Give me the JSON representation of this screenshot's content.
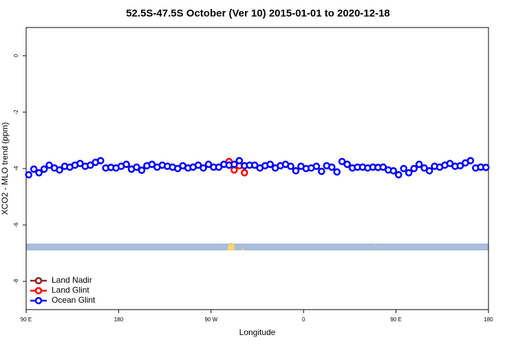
{
  "chart_data": {
    "type": "scatter",
    "title": "52.5S-47.5S October (Ver 10)   2015-01-01 to 2020-12-18",
    "x_label": "Longitude",
    "y_label": "XCO2 - MLO trend (ppm)",
    "xlim": [
      90,
      540
    ],
    "ylim": [
      -9,
      1
    ],
    "xticks": [
      {
        "value": 90,
        "label": "90 E"
      },
      180,
      {
        "value": 270,
        "label": "90 W"
      },
      {
        "value": 360,
        "label": "0"
      },
      {
        "value": 450,
        "label": "90 E"
      },
      {
        "value": 540,
        "label": "180"
      }
    ],
    "yticks": [
      0,
      -2,
      -4,
      -6,
      -8
    ],
    "legend": "bottom-left",
    "series": [
      {
        "name": "Land Nadir",
        "color": "#8b2323",
        "x": [],
        "values": []
      },
      {
        "name": "Land Glint",
        "color": "#ff0000",
        "x": [
          287.5,
          292.5,
          297.5,
          302.5
        ],
        "values": [
          -3.75,
          -4.05,
          -3.9,
          -4.15
        ]
      },
      {
        "name": "Ocean Glint",
        "color": "#0000ff",
        "x": [
          92.5,
          97.5,
          102.5,
          107.5,
          112.5,
          117.5,
          122.5,
          127.5,
          132.5,
          137.5,
          142.5,
          147.5,
          152.5,
          157.5,
          162.5,
          167.5,
          172.5,
          177.5,
          182.5,
          187.5,
          192.5,
          197.5,
          202.5,
          207.5,
          212.5,
          217.5,
          222.5,
          227.5,
          232.5,
          237.5,
          242.5,
          247.5,
          252.5,
          257.5,
          262.5,
          267.5,
          272.5,
          277.5,
          282.5,
          287.5,
          292.5,
          297.5,
          302.5,
          307.5,
          312.5,
          317.5,
          322.5,
          327.5,
          332.5,
          337.5,
          342.5,
          347.5,
          352.5,
          357.5,
          362.5,
          367.5,
          372.5,
          377.5,
          382.5,
          387.5,
          392.5,
          397.5,
          402.5,
          407.5,
          412.5,
          417.5,
          422.5,
          427.5,
          432.5,
          437.5,
          442.5,
          447.5,
          452.5,
          457.5,
          462.5,
          467.5,
          472.5,
          477.5,
          482.5,
          487.5,
          492.5,
          497.5,
          502.5,
          507.5,
          512.5,
          517.5,
          522.5,
          527.5,
          532.5,
          537.5
        ],
        "values": [
          -4.22,
          -4.02,
          -4.15,
          -4.02,
          -3.88,
          -3.98,
          -4.05,
          -3.92,
          -3.95,
          -3.88,
          -3.82,
          -3.92,
          -3.88,
          -3.78,
          -3.72,
          -3.98,
          -3.96,
          -3.98,
          -3.92,
          -3.85,
          -4.02,
          -3.95,
          -4.06,
          -3.9,
          -3.85,
          -3.95,
          -3.88,
          -3.92,
          -3.95,
          -4.0,
          -3.9,
          -3.98,
          -3.95,
          -3.88,
          -3.98,
          -3.85,
          -3.95,
          -3.95,
          -3.85,
          -3.88,
          -3.85,
          -3.72,
          -3.9,
          -3.88,
          -3.88,
          -3.98,
          -3.9,
          -3.85,
          -3.98,
          -3.9,
          -3.85,
          -3.92,
          -4.08,
          -3.92,
          -4.0,
          -3.98,
          -3.92,
          -4.1,
          -3.9,
          -3.95,
          -4.12,
          -3.75,
          -3.85,
          -3.98,
          -3.95,
          -3.95,
          -3.98,
          -3.95,
          -3.96,
          -3.95,
          -4.05,
          -4.08,
          -4.22,
          -4.0,
          -4.15,
          -4.0,
          -3.85,
          -3.98,
          -4.08,
          -3.92,
          -3.95,
          -3.88,
          -3.82,
          -3.92,
          -3.9,
          -3.8,
          -3.72,
          -3.98,
          -3.95,
          -3.96
        ]
      }
    ]
  }
}
